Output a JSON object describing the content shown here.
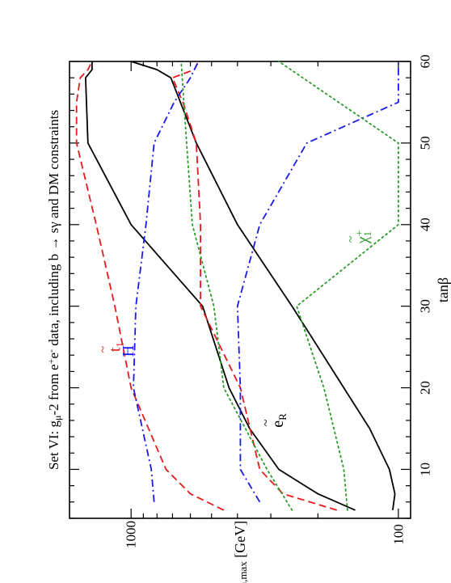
{
  "chart_data": {
    "type": "line",
    "orientation": "rotated-90-ccw",
    "title": "Set VI: g",
    "title_sub": "μ",
    "title_rest": "-2 from e",
    "title_sup1": "+",
    "title_mid": "e",
    "title_sup2": "-",
    "title_end": " data, including b → sγ and DM constraints",
    "xlabel": "tanβ",
    "ylabel_main": "m",
    "ylabel_sub": "min,max",
    "ylabel_unit": " [GeV]",
    "x_ticks": [
      "10",
      "20",
      "30",
      "40",
      "50",
      "60"
    ],
    "y_tick_labels": [
      "100",
      "1000"
    ],
    "xlim": [
      4,
      60
    ],
    "ylim": [
      90,
      1700
    ],
    "y_scale": "log",
    "series": [
      {
        "name": "slepton_min",
        "color": "#000000",
        "dash": "solid",
        "x": [
          5,
          7,
          10,
          15,
          20,
          30,
          40,
          50,
          58,
          59,
          60
        ],
        "y": [
          105,
          103,
          108,
          128,
          160,
          250,
          400,
          570,
          710,
          800,
          1000
        ]
      },
      {
        "name": "slepton_max",
        "color": "#000000",
        "dash": "solid",
        "x": [
          5,
          7,
          10,
          15,
          20,
          30,
          40,
          50,
          58,
          59,
          60
        ],
        "y": [
          145,
          200,
          280,
          360,
          430,
          540,
          1000,
          1450,
          1480,
          1400,
          1400
        ]
      },
      {
        "name": "stop_min",
        "color": "#e8191a",
        "dash": "dashed",
        "x": [
          5,
          7,
          10,
          20,
          30,
          40,
          50,
          55,
          58,
          59,
          60
        ],
        "y": [
          170,
          270,
          330,
          390,
          550,
          550,
          570,
          640,
          700,
          580,
          560
        ]
      },
      {
        "name": "stop_max",
        "color": "#e8191a",
        "dash": "dashed",
        "x": [
          5,
          7,
          10,
          20,
          30,
          40,
          50,
          55,
          58,
          59,
          60
        ],
        "y": [
          450,
          600,
          740,
          1000,
          1150,
          1350,
          1600,
          1600,
          1550,
          1450,
          1400
        ]
      },
      {
        "name": "higgs_min",
        "color": "#1a1ae8",
        "dash": "dashdot",
        "x": [
          6,
          10,
          20,
          30,
          40,
          50,
          55,
          60
        ],
        "y": [
          330,
          390,
          390,
          400,
          330,
          220,
          100,
          100
        ]
      },
      {
        "name": "higgs_max",
        "color": "#1a1ae8",
        "dash": "dashdot",
        "x": [
          6,
          10,
          20,
          30,
          40,
          50,
          55,
          58,
          60
        ],
        "y": [
          820,
          840,
          980,
          960,
          880,
          820,
          690,
          600,
          560
        ]
      },
      {
        "name": "chargino_min",
        "color": "#2a9a2a",
        "dash": "dotted",
        "x": [
          5,
          10,
          20,
          30,
          40,
          50,
          60
        ],
        "y": [
          155,
          160,
          190,
          240,
          100,
          100,
          280
        ]
      },
      {
        "name": "chargino_max",
        "color": "#2a9a2a",
        "dash": "dotted",
        "x": [
          5,
          10,
          20,
          30,
          40,
          50,
          60
        ],
        "y": [
          250,
          310,
          450,
          490,
          590,
          620,
          650
        ]
      }
    ],
    "annotations": [
      {
        "id": "stop",
        "text": "t",
        "accent": "~",
        "sub": "1",
        "color": "#e8191a",
        "x": 25,
        "y": 1100
      },
      {
        "id": "higgs",
        "text": "H",
        "color": "#1a1ae8",
        "x": 24.5,
        "y": 980
      },
      {
        "id": "slepton",
        "text": "e",
        "accent": "~",
        "sub": "R",
        "color": "#000000",
        "x": 16,
        "y": 270
      },
      {
        "id": "chargino",
        "text": "χ",
        "accent": "~",
        "sup": "+",
        "sub": "1",
        "color": "#2a9a2a",
        "x": 38.5,
        "y": 130
      }
    ]
  }
}
